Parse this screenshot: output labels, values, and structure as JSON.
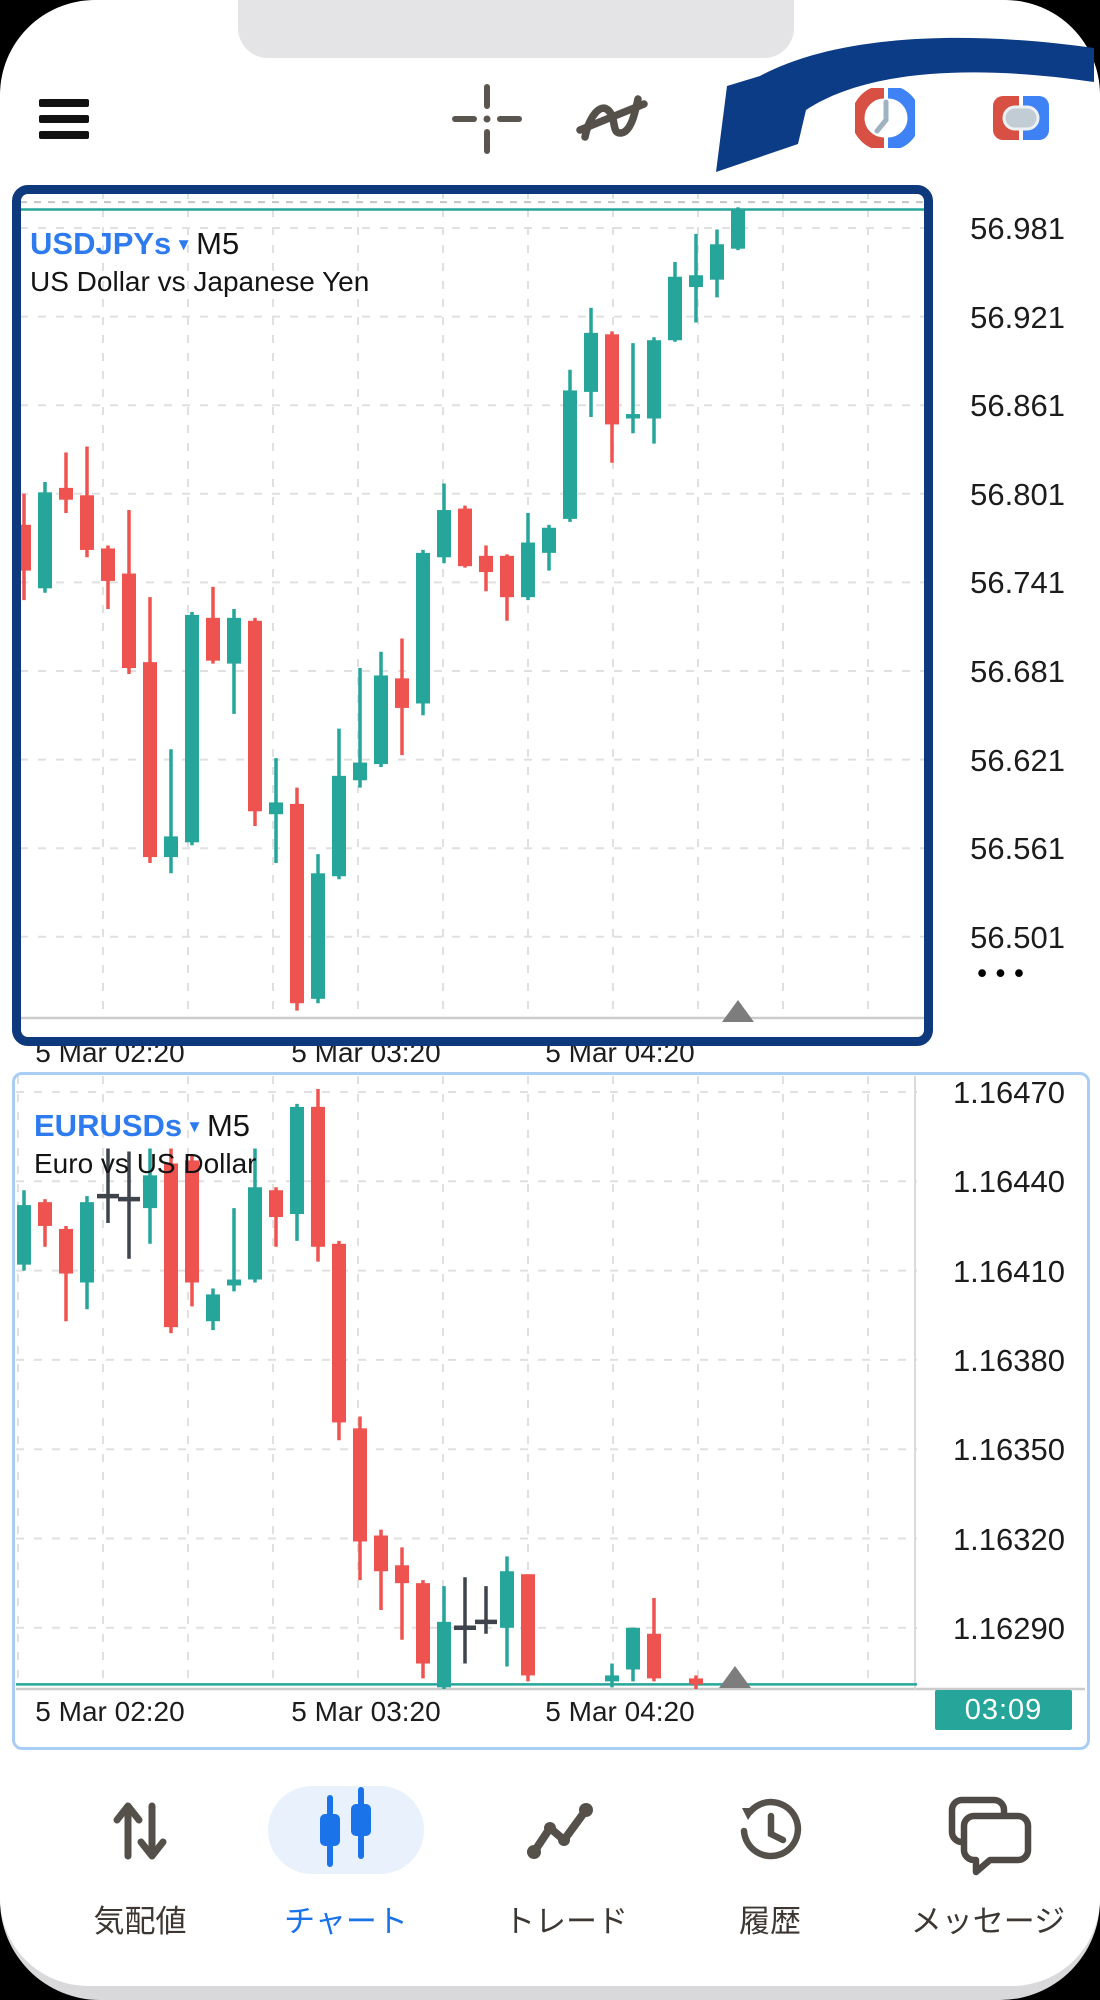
{
  "toolbar": {
    "menu_icon": "hamburger",
    "crosshair_icon": "crosshair",
    "indicators_icon": "function-wave",
    "interval_icon": "clock-red-blue-ring",
    "windows_icon": "card-red-blue-toggle"
  },
  "annotation": {
    "type": "curved-arrow",
    "points_at": "usdjpy-chart",
    "color": "#0d3c86"
  },
  "colors": {
    "up": "#26a69a",
    "down": "#ef5350",
    "doji": "#3e434c",
    "grid": "#e0e0e0",
    "axis_line": "#cccccc",
    "selected_border": "#0e3a7d",
    "chart_border": "#a9cdf4",
    "symbol_blue": "#2e7bf0",
    "badge_bg": "#26a69a",
    "nav_active": "#1a73e8",
    "nav_inactive": "#3c3733"
  },
  "charts": [
    {
      "symbol": "USDJPYs",
      "timeframe": "M5",
      "subtitle": "US Dollar vs Japanese Yen",
      "selected": true,
      "price_labels": [
        "56.981",
        "56.921",
        "56.861",
        "56.801",
        "56.741",
        "56.681",
        "56.621",
        "56.561",
        "56.501"
      ],
      "time_labels": [
        "5 Mar 02:20",
        "5 Mar 03:20",
        "5 Mar 04:20"
      ],
      "more_label": "•••",
      "bid_line_price": 56.9935,
      "ask_line_price": 56.9985,
      "candles": [
        [
          56.78,
          56.801,
          56.729,
          56.749
        ],
        [
          56.737,
          56.809,
          56.734,
          56.802
        ],
        [
          56.805,
          56.829,
          56.788,
          56.797
        ],
        [
          56.8,
          56.833,
          56.758,
          56.763
        ],
        [
          56.764,
          56.766,
          56.723,
          56.742
        ],
        [
          56.747,
          56.79,
          56.679,
          56.683
        ],
        [
          56.687,
          56.731,
          56.551,
          56.555
        ],
        [
          56.555,
          56.628,
          56.544,
          56.569
        ],
        [
          56.565,
          56.721,
          56.563,
          56.719
        ],
        [
          56.717,
          56.738,
          56.686,
          56.688
        ],
        [
          56.686,
          56.723,
          56.652,
          56.717
        ],
        [
          56.715,
          56.717,
          56.576,
          56.586
        ],
        [
          56.584,
          56.622,
          56.551,
          56.592
        ],
        [
          56.591,
          56.602,
          56.451,
          56.456
        ],
        [
          56.459,
          56.557,
          56.456,
          56.544
        ],
        [
          56.542,
          56.642,
          56.54,
          56.61
        ],
        [
          56.607,
          56.683,
          56.602,
          56.619
        ],
        [
          56.618,
          56.694,
          56.616,
          56.678
        ],
        [
          56.676,
          56.703,
          56.624,
          56.656
        ],
        [
          56.659,
          56.763,
          56.651,
          56.761
        ],
        [
          56.758,
          56.808,
          56.754,
          56.79
        ],
        [
          56.791,
          56.793,
          56.751,
          56.752
        ],
        [
          56.759,
          56.766,
          56.735,
          56.748
        ],
        [
          56.759,
          56.76,
          56.715,
          56.731
        ],
        [
          56.731,
          56.788,
          56.729,
          56.768
        ],
        [
          56.761,
          56.78,
          56.749,
          56.778
        ],
        [
          56.784,
          56.885,
          56.782,
          56.871
        ],
        [
          56.87,
          56.927,
          56.853,
          56.91
        ],
        [
          56.909,
          56.911,
          56.822,
          56.848
        ],
        [
          56.852,
          56.903,
          56.842,
          56.855
        ],
        [
          56.852,
          56.907,
          56.835,
          56.905
        ],
        [
          56.905,
          56.958,
          56.904,
          56.948
        ],
        [
          56.941,
          56.977,
          56.917,
          56.949
        ],
        [
          56.946,
          56.98,
          56.934,
          56.97
        ],
        [
          56.967,
          56.995,
          56.966,
          56.994
        ]
      ]
    },
    {
      "symbol": "EURUSDs",
      "timeframe": "M5",
      "subtitle": "Euro vs US Dollar",
      "selected": false,
      "price_labels": [
        "1.16470",
        "1.16440",
        "1.16410",
        "1.16380",
        "1.16350",
        "1.16320",
        "1.16290"
      ],
      "time_labels": [
        "5 Mar 02:20",
        "5 Mar 03:20",
        "5 Mar 04:20"
      ],
      "timer_badge": "03:09",
      "bid_line_price": 1.16271,
      "candles": [
        [
          1.16412,
          1.16437,
          1.1641,
          1.16432
        ],
        [
          1.16433,
          1.16434,
          1.16418,
          1.16425
        ],
        [
          1.16424,
          1.16425,
          1.16393,
          1.16409
        ],
        [
          1.16406,
          1.16435,
          1.16397,
          1.16433
        ],
        [
          1.16435,
          1.16451,
          1.16426,
          1.16435,
          "d"
        ],
        [
          1.16434,
          1.1645,
          1.16414,
          1.16434,
          "d"
        ],
        [
          1.16431,
          1.16451,
          1.16419,
          1.16442
        ],
        [
          1.16446,
          1.16451,
          1.16389,
          1.16391
        ],
        [
          1.16447,
          1.16449,
          1.16398,
          1.16406
        ],
        [
          1.16393,
          1.16404,
          1.1639,
          1.16402
        ],
        [
          1.16405,
          1.16431,
          1.16403,
          1.16407
        ],
        [
          1.16407,
          1.16451,
          1.16406,
          1.16438
        ],
        [
          1.16437,
          1.16438,
          1.16418,
          1.16428
        ],
        [
          1.16429,
          1.16466,
          1.1642,
          1.16465
        ],
        [
          1.16465,
          1.16471,
          1.16413,
          1.16418
        ],
        [
          1.16419,
          1.1642,
          1.16353,
          1.16359
        ],
        [
          1.16357,
          1.16361,
          1.16306,
          1.16319
        ],
        [
          1.16321,
          1.16323,
          1.16296,
          1.16309
        ],
        [
          1.16311,
          1.16317,
          1.16286,
          1.16305
        ],
        [
          1.16305,
          1.16306,
          1.16273,
          1.16278
        ],
        [
          1.1627,
          1.16304,
          1.16269,
          1.16292
        ],
        [
          1.1629,
          1.16307,
          1.16278,
          1.1629,
          "d"
        ],
        [
          1.16292,
          1.16304,
          1.16288,
          1.16292,
          "d"
        ],
        [
          1.1629,
          1.16314,
          1.16277,
          1.16309
        ],
        [
          1.16308,
          1.16308,
          1.16272,
          1.16274
        ],
        null,
        null,
        null,
        [
          1.16272,
          1.16278,
          1.1627,
          1.16274
        ],
        [
          1.16276,
          1.1629,
          1.16272,
          1.1629
        ],
        [
          1.16288,
          1.163,
          1.16272,
          1.16273
        ],
        null,
        [
          1.16273,
          1.16274,
          1.16269,
          1.16271
        ]
      ]
    }
  ],
  "nav": {
    "items": [
      {
        "label": "気配値",
        "icon": "quotes-arrows-icon",
        "active": false
      },
      {
        "label": "チャート",
        "icon": "candlestick-icon",
        "active": true
      },
      {
        "label": "トレード",
        "icon": "trend-dots-icon",
        "active": false
      },
      {
        "label": "履歴",
        "icon": "history-clock-icon",
        "active": false
      },
      {
        "label": "メッセージ",
        "icon": "chat-bubbles-icon",
        "active": false
      }
    ]
  }
}
